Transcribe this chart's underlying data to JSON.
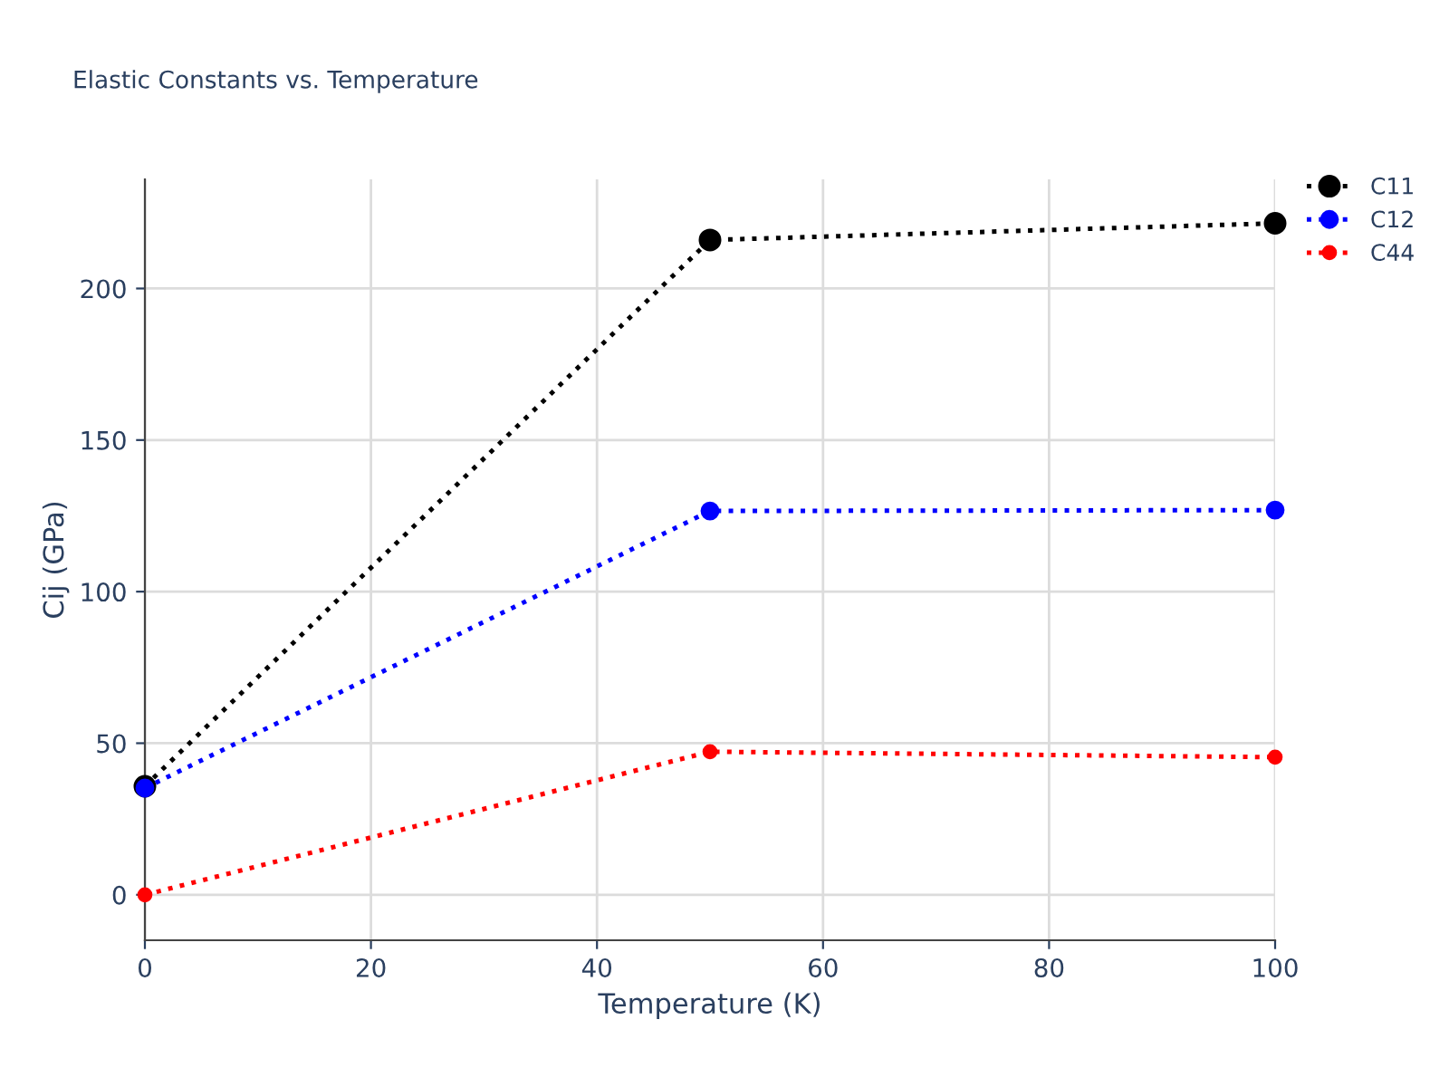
{
  "chart_data": {
    "type": "line",
    "title": "Elastic Constants vs. Temperature",
    "xlabel": "Temperature (K)",
    "ylabel": "Cij (GPa)",
    "x": [
      0,
      50,
      100
    ],
    "series": [
      {
        "name": "C11",
        "color": "#000000",
        "values": [
          35.8,
          216,
          221.5
        ]
      },
      {
        "name": "C12",
        "color": "#0000ff",
        "values": [
          35.2,
          126.6,
          126.9
        ]
      },
      {
        "name": "C44",
        "color": "#ff0000",
        "values": [
          0,
          47.2,
          45.4
        ]
      }
    ],
    "xlim": [
      0,
      100
    ],
    "xticks": [
      0,
      20,
      40,
      60,
      80,
      100
    ],
    "ylim": [
      -15,
      236
    ],
    "yticks": [
      0,
      50,
      100,
      150,
      200
    ],
    "grid": true,
    "legend": "top right",
    "marker": "circle",
    "line_style": "dotted"
  }
}
